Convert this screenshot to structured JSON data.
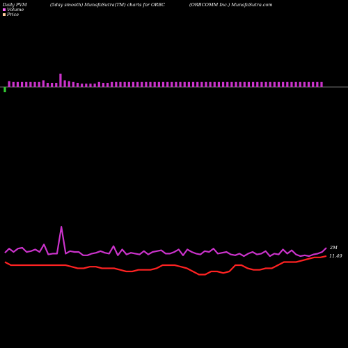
{
  "header": {
    "left": "Daily PVM",
    "center": "(5day smooth) MunafaSutra(TM) charts for ORBC",
    "right": "(ORBCOMM Inc.) MunafaSutra.com"
  },
  "legend": [
    {
      "label": "Volume",
      "color": "#ff66ff"
    },
    {
      "label": "Price",
      "color": "#ffcc99"
    }
  ],
  "chart_data": {
    "type": "bar",
    "title": "Daily PVM",
    "volume_bars": {
      "values": [
        6,
        7,
        6,
        6,
        6,
        6,
        6,
        6,
        6,
        8,
        5,
        5,
        5,
        16,
        8,
        7,
        6,
        5,
        4,
        4,
        4,
        4,
        6,
        5,
        5,
        6,
        6,
        6,
        6,
        6,
        6,
        6,
        6,
        6,
        6,
        6,
        6,
        6,
        6,
        6,
        6,
        6,
        6,
        6,
        6,
        6,
        6,
        6,
        6,
        6,
        6,
        6,
        6,
        6,
        6,
        6,
        6,
        6,
        6,
        6,
        6,
        6,
        6,
        6,
        6,
        6,
        6,
        6,
        6,
        6,
        6,
        6,
        6,
        6,
        6
      ],
      "directions": [
        -1,
        1,
        1,
        1,
        1,
        1,
        1,
        1,
        1,
        1,
        1,
        1,
        1,
        1,
        1,
        1,
        1,
        1,
        1,
        1,
        1,
        1,
        1,
        1,
        1,
        1,
        1,
        1,
        1,
        1,
        1,
        1,
        1,
        1,
        1,
        1,
        1,
        1,
        1,
        1,
        1,
        1,
        1,
        1,
        1,
        1,
        1,
        1,
        1,
        1,
        1,
        1,
        1,
        1,
        1,
        1,
        1,
        1,
        1,
        1,
        1,
        1,
        1,
        1,
        1,
        1,
        1,
        1,
        1,
        1,
        1,
        1,
        1,
        1,
        1
      ]
    },
    "volume_line": {
      "name": "Volume",
      "end_label": "2M",
      "values": [
        1.4,
        1.9,
        1.5,
        1.9,
        2.0,
        1.5,
        1.6,
        1.8,
        1.5,
        2.4,
        1.2,
        1.3,
        1.3,
        4.5,
        1.3,
        1.6,
        1.5,
        1.5,
        1.1,
        1.1,
        1.3,
        1.4,
        1.6,
        1.4,
        1.3,
        2.2,
        1.1,
        1.8,
        1.2,
        1.4,
        1.3,
        1.2,
        1.6,
        1.2,
        1.5,
        1.6,
        1.7,
        1.3,
        1.3,
        1.5,
        1.8,
        1.1,
        1.8,
        1.5,
        1.3,
        1.2,
        1.6,
        1.5,
        1.9,
        1.3,
        1.4,
        1.5,
        1.2,
        1.1,
        1.3,
        1.0,
        1.3,
        1.5,
        1.2,
        1.3,
        1.6,
        1.0,
        1.3,
        1.2,
        1.8,
        1.3,
        1.7,
        1.2,
        1.0,
        1.1,
        1.0,
        1.2,
        1.3,
        1.5,
        2.0
      ],
      "color": "#cc33cc"
    },
    "price_line": {
      "name": "Price",
      "end_label": "11.49",
      "values": [
        11.3,
        11.2,
        11.2,
        11.2,
        11.2,
        11.2,
        11.2,
        11.2,
        11.2,
        11.2,
        11.2,
        11.15,
        11.1,
        11.1,
        11.15,
        11.15,
        11.1,
        11.1,
        11.1,
        11.05,
        11.0,
        11.0,
        11.05,
        11.05,
        11.05,
        11.1,
        11.2,
        11.2,
        11.2,
        11.15,
        11.1,
        11.0,
        10.9,
        10.9,
        11.0,
        11.0,
        10.95,
        11.0,
        11.2,
        11.2,
        11.1,
        11.05,
        11.05,
        11.1,
        11.1,
        11.2,
        11.3,
        11.3,
        11.3,
        11.35,
        11.4,
        11.45,
        11.45,
        11.49
      ],
      "color": "#ff2222"
    },
    "zero_line_color": "#999999"
  }
}
